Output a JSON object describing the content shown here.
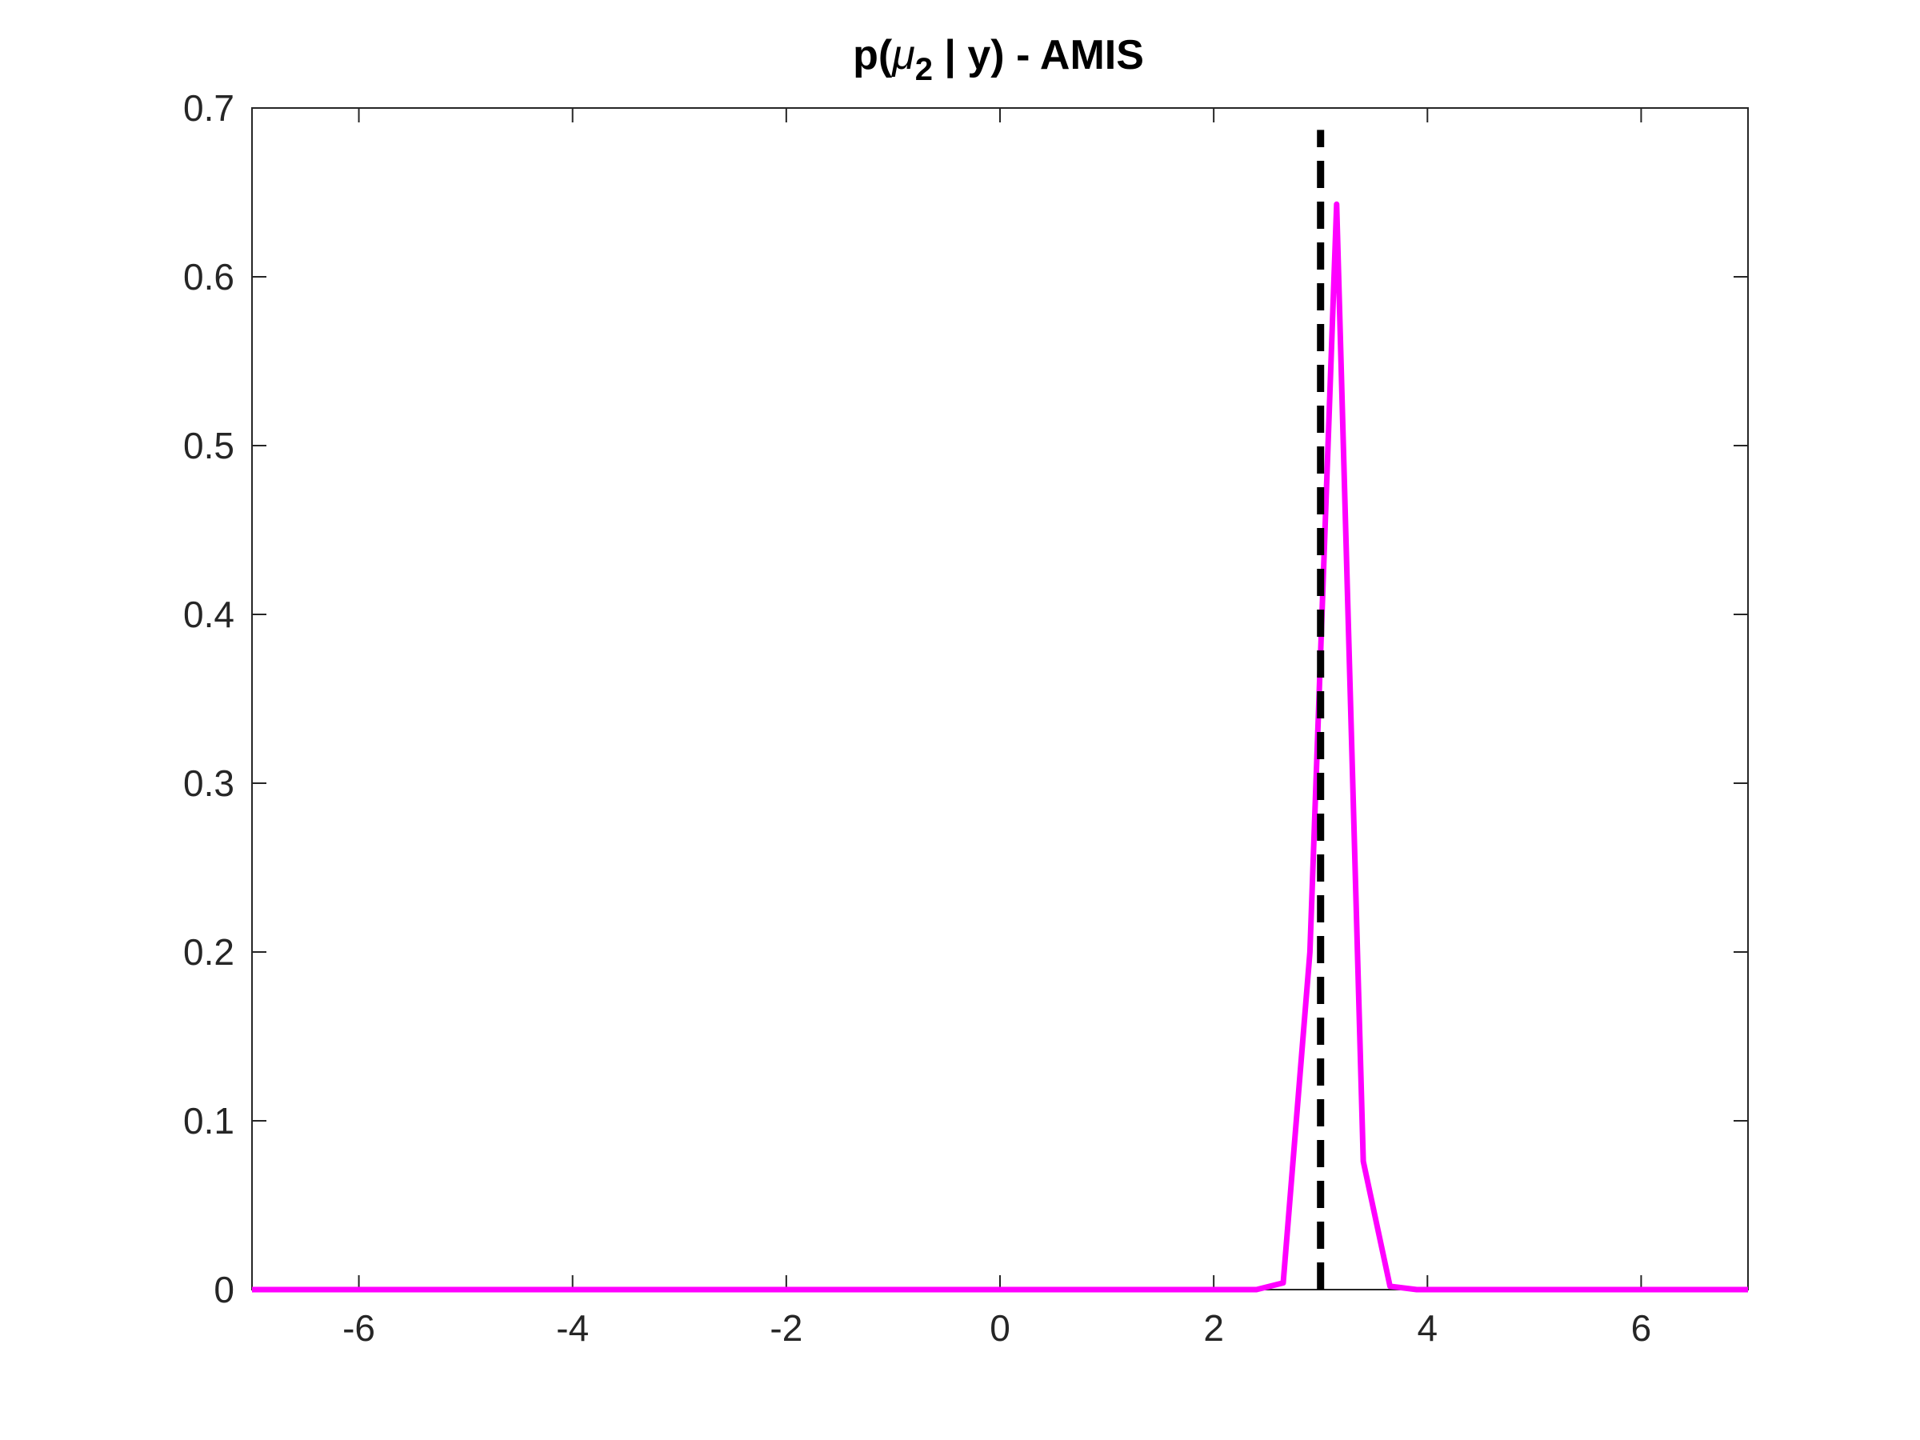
{
  "chart_data": {
    "type": "line",
    "title": {
      "prefix": "p(",
      "symbol": "μ",
      "subscript": "2",
      "suffix": " | y) - AMIS"
    },
    "xlabel": "",
    "ylabel": "",
    "xlim": [
      -7,
      7
    ],
    "ylim": [
      0,
      0.7
    ],
    "x_ticks": [
      -6,
      -4,
      -2,
      0,
      2,
      4,
      6
    ],
    "x_tick_labels": [
      "-6",
      "-4",
      "-2",
      "0",
      "2",
      "4",
      "6"
    ],
    "y_ticks": [
      0,
      0.1,
      0.2,
      0.3,
      0.4,
      0.5,
      0.6,
      0.7
    ],
    "y_tick_labels": [
      "0",
      "0.1",
      "0.2",
      "0.3",
      "0.4",
      "0.5",
      "0.6",
      "0.7"
    ],
    "grid": false,
    "series": [
      {
        "color": "#ff00ff",
        "x": [
          -7,
          -6,
          -5,
          -4,
          -3,
          -2,
          -1,
          0,
          1,
          2,
          2.4,
          2.65,
          2.9,
          3.15,
          3.4,
          3.65,
          3.9,
          4.5,
          5,
          6,
          7
        ],
        "y": [
          0,
          0,
          0,
          0,
          0,
          0,
          0,
          0,
          0,
          0,
          0,
          0.004,
          0.2,
          0.643,
          0.076,
          0.002,
          0,
          0,
          0,
          0,
          0
        ]
      }
    ],
    "reference_lines": [
      {
        "orientation": "vertical",
        "x": 3,
        "y_range": [
          0,
          0.687
        ],
        "style": "dashed",
        "color": "#000000"
      }
    ]
  }
}
